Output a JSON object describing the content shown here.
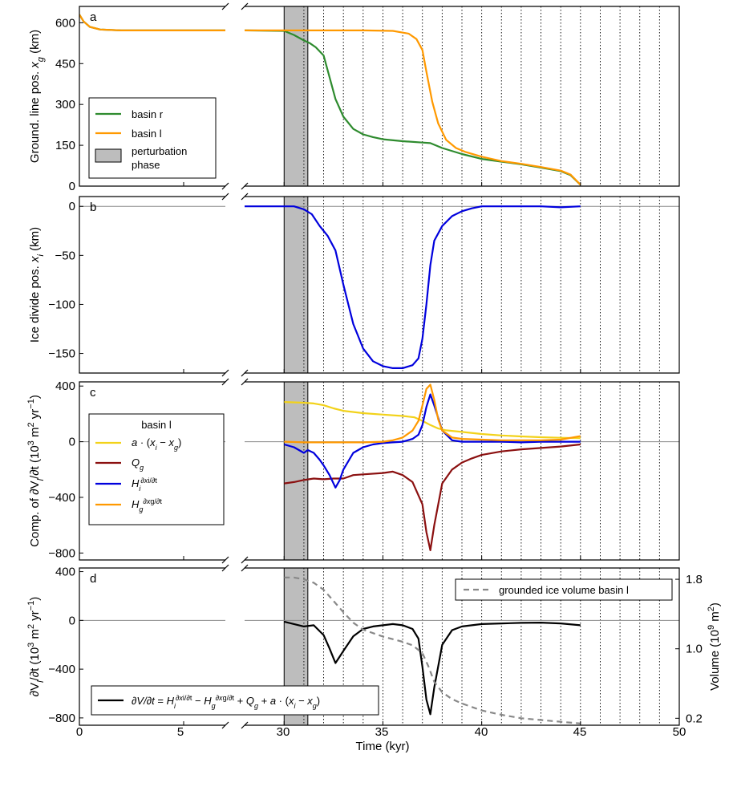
{
  "figure": {
    "xlabel": "Time (kyr)",
    "x_ticks": [
      0,
      5,
      30,
      35,
      40,
      45,
      50
    ],
    "x_break": [
      7,
      28
    ],
    "dotted_lines_every_kyr": [
      31,
      32,
      33,
      34,
      35,
      36,
      37,
      38,
      39,
      40,
      41,
      42,
      43,
      44,
      45,
      46,
      47,
      48,
      49
    ],
    "perturbation_phase": [
      30,
      31.2
    ]
  },
  "colors": {
    "basin_r": "#2e8b2e",
    "basin_l": "#ff9900",
    "yellow": "#f2d21a",
    "Qg": "#8b1010",
    "blue": "#0000dd",
    "orange": "#ff9900",
    "black": "#000000",
    "volume": "#888888",
    "shade": "#bdbdbd"
  },
  "chart_data": [
    {
      "type": "line",
      "panel_label": "a",
      "ylabel": "Ground. line pos. x_g (km)",
      "ylim": [
        0,
        660
      ],
      "yticks": [
        0,
        150,
        300,
        450,
        600
      ],
      "legend": {
        "position": "left",
        "entries": [
          "basin r",
          "basin l",
          "perturbation phase"
        ]
      },
      "series": [
        {
          "name": "basin r",
          "color": "#2e8b2e",
          "x": [
            0,
            0.2,
            0.5,
            1,
            2,
            4,
            7,
            28,
            30,
            30.5,
            31,
            31.3,
            31.6,
            32,
            32.3,
            32.6,
            33,
            33.5,
            34,
            34.5,
            35,
            36,
            37,
            37.4,
            38,
            39,
            40,
            41,
            42,
            43,
            44,
            44.5,
            45
          ],
          "y": [
            630,
            605,
            585,
            575,
            572,
            572,
            572,
            572,
            570,
            555,
            535,
            525,
            510,
            480,
            400,
            320,
            255,
            210,
            190,
            180,
            172,
            165,
            160,
            158,
            140,
            118,
            100,
            90,
            80,
            68,
            55,
            40,
            5
          ]
        },
        {
          "name": "basin l",
          "color": "#ff9900",
          "x": [
            0,
            0.2,
            0.5,
            1,
            2,
            4,
            7,
            28,
            30,
            32,
            34,
            35.5,
            36.3,
            36.7,
            37,
            37.2,
            37.5,
            37.8,
            38.2,
            38.7,
            39.2,
            40,
            41,
            42,
            43,
            44,
            44.5,
            45
          ],
          "y": [
            630,
            605,
            585,
            575,
            572,
            572,
            572,
            572,
            572,
            572,
            572,
            570,
            560,
            540,
            500,
            420,
            310,
            230,
            170,
            140,
            125,
            108,
            92,
            82,
            70,
            57,
            42,
            5
          ]
        }
      ]
    },
    {
      "type": "line",
      "panel_label": "b",
      "ylabel": "Ice divide pos. x_i (km)",
      "ylim": [
        -170,
        10
      ],
      "yticks": [
        -150,
        -100,
        -50,
        0
      ],
      "series": [
        {
          "name": "",
          "color": "#0000dd",
          "x": [
            28,
            30,
            30.5,
            31,
            31.4,
            31.8,
            32.2,
            32.6,
            33,
            33.5,
            34,
            34.5,
            35,
            35.5,
            36,
            36.5,
            36.8,
            37,
            37.2,
            37.4,
            37.6,
            38,
            38.5,
            39,
            39.5,
            40,
            41,
            42,
            43,
            44,
            45
          ],
          "y": [
            0,
            0,
            0,
            -3,
            -8,
            -20,
            -30,
            -45,
            -80,
            -120,
            -145,
            -158,
            -163,
            -165,
            -165,
            -162,
            -155,
            -135,
            -100,
            -60,
            -35,
            -20,
            -10,
            -5,
            -2,
            0,
            0,
            0,
            0,
            -1,
            0
          ]
        }
      ]
    },
    {
      "type": "line",
      "panel_label": "c",
      "ylabel": "Comp. of ∂V_l/∂t (10^3 m^2 yr^-1)",
      "ylim": [
        -850,
        430
      ],
      "yticks": [
        -800,
        -400,
        0,
        400
      ],
      "legend": {
        "position": "left",
        "title": "basin l",
        "entries": [
          "a · (x_i − x_g)",
          "Q_g",
          "H_i ∂x_i/∂t",
          "H_g ∂x_g/∂t"
        ]
      },
      "series": [
        {
          "name": "a · (x_i − x_g)",
          "color": "#f2d21a",
          "x": [
            30,
            31,
            31.5,
            32,
            32.5,
            33,
            34,
            35,
            36,
            36.6,
            37,
            37.4,
            37.8,
            38.2,
            39,
            40,
            41,
            42,
            43,
            44,
            45
          ],
          "y": [
            285,
            280,
            275,
            262,
            240,
            222,
            205,
            195,
            185,
            175,
            150,
            120,
            95,
            82,
            70,
            55,
            45,
            38,
            32,
            28,
            25
          ]
        },
        {
          "name": "Q_g",
          "color": "#8b1010",
          "x": [
            30,
            30.5,
            31,
            31.5,
            32,
            32.5,
            33,
            33.5,
            34,
            35,
            35.5,
            36,
            36.5,
            37,
            37.2,
            37.4,
            37.6,
            38,
            38.5,
            39,
            39.5,
            40,
            41,
            42,
            43,
            44,
            45
          ],
          "y": [
            -300,
            -290,
            -275,
            -265,
            -270,
            -265,
            -265,
            -240,
            -235,
            -225,
            -215,
            -240,
            -290,
            -450,
            -650,
            -780,
            -600,
            -300,
            -200,
            -150,
            -120,
            -95,
            -70,
            -55,
            -45,
            -35,
            -20
          ]
        },
        {
          "name": "H_i ∂x_i/∂t",
          "color": "#0000dd",
          "x": [
            30,
            30.5,
            31,
            31.2,
            31.5,
            31.8,
            32,
            32.3,
            32.6,
            32.8,
            33,
            33.5,
            34,
            34.5,
            35,
            35.5,
            36,
            36.5,
            36.8,
            37,
            37.2,
            37.4,
            37.6,
            38,
            38.5,
            39,
            40,
            41,
            42,
            43,
            44,
            45
          ],
          "y": [
            -20,
            -40,
            -80,
            -60,
            -80,
            -130,
            -170,
            -240,
            -330,
            -280,
            -200,
            -80,
            -40,
            -20,
            -10,
            -5,
            0,
            20,
            50,
            120,
            250,
            340,
            260,
            80,
            10,
            0,
            0,
            0,
            -5,
            0,
            0,
            0
          ]
        },
        {
          "name": "H_g ∂x_g/∂t",
          "color": "#ff9900",
          "x": [
            30,
            31,
            32,
            33,
            34,
            35,
            35.5,
            36,
            36.5,
            36.8,
            37,
            37.2,
            37.4,
            37.6,
            37.8,
            38,
            38.5,
            39,
            40,
            41,
            42,
            43,
            44,
            45
          ],
          "y": [
            0,
            -5,
            -5,
            -5,
            -5,
            0,
            10,
            30,
            80,
            150,
            260,
            380,
            410,
            300,
            160,
            80,
            30,
            20,
            15,
            10,
            10,
            10,
            15,
            40
          ]
        }
      ]
    },
    {
      "type": "line",
      "panel_label": "d",
      "ylabel": "∂V_l/∂t (10^3 m^2 yr^-1)",
      "ylim": [
        -860,
        430
      ],
      "yticks": [
        -800,
        -400,
        0,
        400
      ],
      "y2label": "Volume (10^9 m^2)",
      "y2ticks": [
        0.2,
        1.0,
        1.8
      ],
      "y2lim": [
        0.12,
        1.93
      ],
      "legend": {
        "entries": [
          "grounded ice volume basin l",
          "∂V_l/∂t = H_i ∂x_i/∂t − H_g ∂x_g/∂t + Q_g + a · (x_i − x_g)"
        ]
      },
      "series": [
        {
          "name": "∂V_l/∂t",
          "color": "#000000",
          "axis": "left",
          "x": [
            30,
            30.5,
            31,
            31.5,
            32,
            32.3,
            32.6,
            32.8,
            33,
            33.5,
            34,
            34.5,
            35,
            35.5,
            36,
            36.5,
            36.8,
            37,
            37.2,
            37.4,
            37.6,
            38,
            38.5,
            39,
            40,
            41,
            42,
            43,
            44,
            45
          ],
          "y": [
            -10,
            -30,
            -50,
            -40,
            -120,
            -230,
            -350,
            -300,
            -250,
            -130,
            -70,
            -50,
            -40,
            -30,
            -40,
            -70,
            -150,
            -380,
            -650,
            -770,
            -550,
            -200,
            -80,
            -50,
            -30,
            -25,
            -20,
            -18,
            -25,
            -40
          ]
        },
        {
          "name": "grounded ice volume basin l",
          "color": "#888888",
          "axis": "right",
          "dashed": true,
          "x": [
            30,
            30.5,
            31,
            31.5,
            32,
            32.5,
            33,
            33.5,
            34,
            35,
            36,
            36.5,
            37,
            37.3,
            37.6,
            38,
            38.5,
            39,
            40,
            41,
            42,
            43,
            44,
            45
          ],
          "y": [
            1.82,
            1.82,
            1.8,
            1.76,
            1.68,
            1.55,
            1.42,
            1.3,
            1.22,
            1.14,
            1.08,
            1.04,
            0.95,
            0.8,
            0.62,
            0.5,
            0.42,
            0.37,
            0.29,
            0.24,
            0.2,
            0.18,
            0.16,
            0.14
          ]
        }
      ]
    }
  ]
}
